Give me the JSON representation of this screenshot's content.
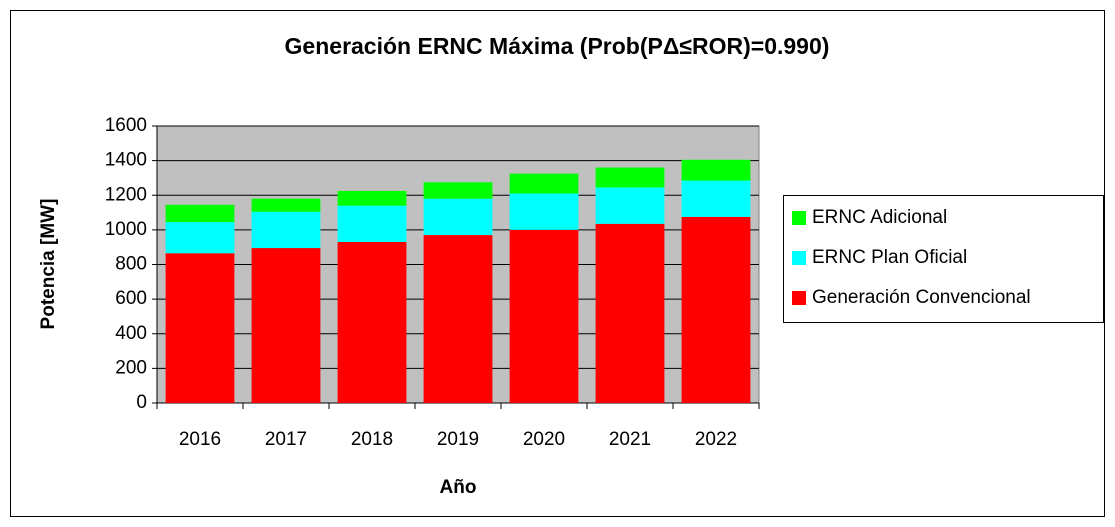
{
  "chart_data": {
    "type": "stacked_bar",
    "title": "Generación ERNC Máxima (Prob(PΔ≤ROR)=0.990)",
    "x_label": "Año",
    "y_label": "Potencia [MW]",
    "categories": [
      "2016",
      "2017",
      "2018",
      "2019",
      "2020",
      "2021",
      "2022"
    ],
    "series": [
      {
        "name": "Generación Convencional",
        "color": "#ff0000",
        "values": [
          865,
          895,
          930,
          970,
          1000,
          1035,
          1075
        ]
      },
      {
        "name": "ERNC Plan Oficial",
        "color": "#00ffff",
        "values": [
          180,
          210,
          210,
          210,
          210,
          210,
          210
        ]
      },
      {
        "name": "ERNC Adicional",
        "color": "#00ff00",
        "values": [
          100,
          75,
          85,
          95,
          115,
          115,
          120
        ]
      }
    ],
    "ylim": [
      0,
      1600
    ],
    "yticks": [
      0,
      200,
      400,
      600,
      800,
      1000,
      1200,
      1400,
      1600
    ],
    "grid": true,
    "legend": "right"
  }
}
